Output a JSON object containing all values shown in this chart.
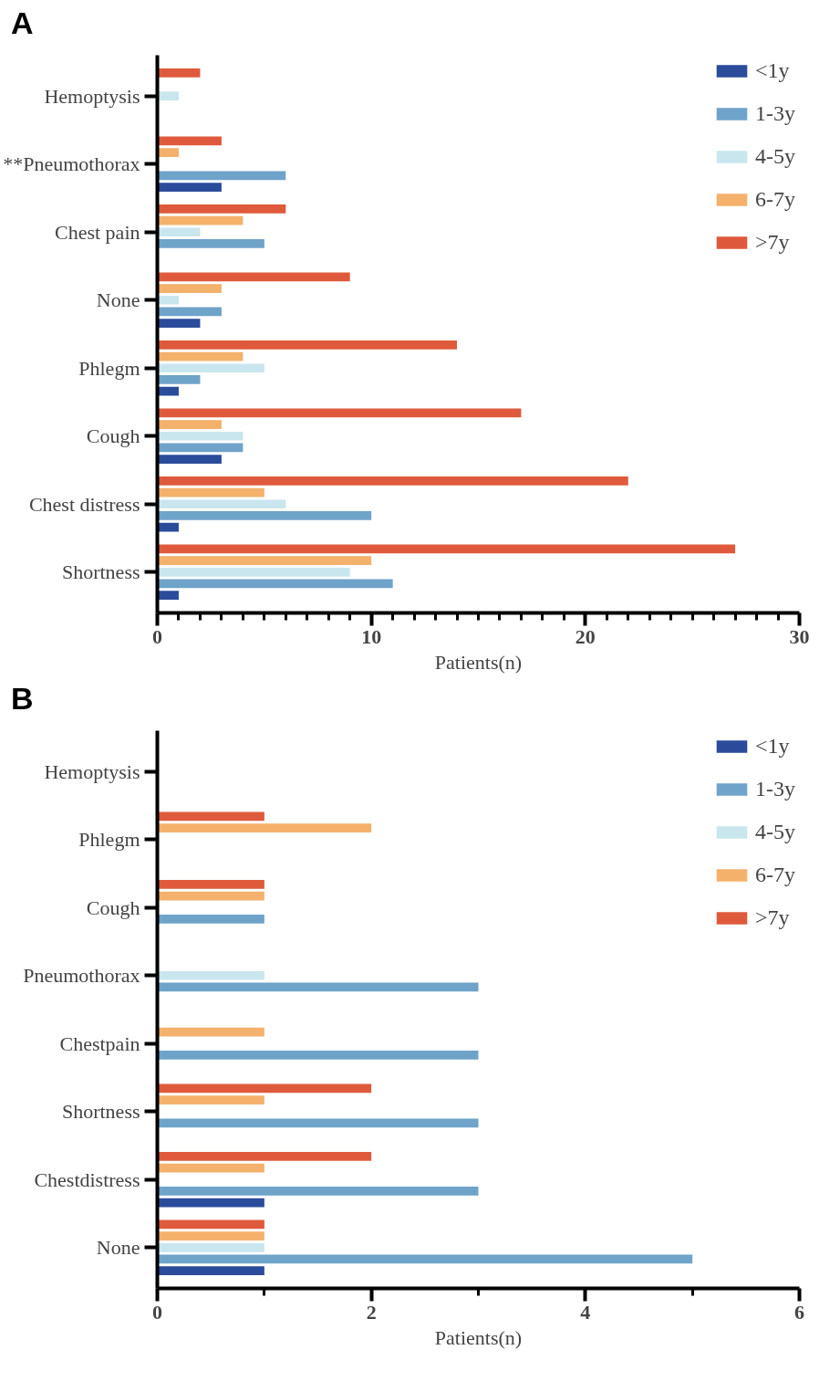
{
  "chart_data": [
    {
      "type": "bar",
      "orientation": "horizontal",
      "title": "A",
      "xlabel": "Patients(n)",
      "categories": [
        "Hemoptysis",
        "**Pneumothorax",
        "Chest pain",
        "None",
        "Phlegm",
        "Cough",
        "Chest distress",
        "Shortness"
      ],
      "series": [
        {
          "name": "<1y",
          "color": "#2b4b9b",
          "values": [
            0,
            3,
            0,
            2,
            1,
            3,
            1,
            1
          ]
        },
        {
          "name": "1-3y",
          "color": "#6fa3c9",
          "values": [
            0,
            6,
            5,
            3,
            2,
            4,
            10,
            11
          ]
        },
        {
          "name": "4-5y",
          "color": "#c9e6ef",
          "values": [
            1,
            0,
            2,
            1,
            5,
            4,
            6,
            9
          ]
        },
        {
          "name": "6-7y",
          "color": "#f4b16b",
          "values": [
            0,
            1,
            4,
            3,
            4,
            3,
            5,
            10
          ]
        },
        {
          "name": ">7y",
          "color": "#df5a3c",
          "values": [
            2,
            3,
            6,
            9,
            14,
            17,
            22,
            27
          ]
        }
      ],
      "xlim": [
        0,
        30
      ],
      "xticks": [
        0,
        {
          "value": 1,
          "label": null
        },
        {
          "value": 2,
          "label": null
        },
        {
          "value": 3,
          "label": null
        },
        {
          "value": 4,
          "label": null
        },
        {
          "value": 5,
          "label": null
        },
        {
          "value": 6,
          "label": null
        },
        {
          "value": 7,
          "label": null
        },
        {
          "value": 8,
          "label": null
        },
        {
          "value": 9,
          "label": null
        },
        10,
        {
          "value": 11,
          "label": null
        },
        {
          "value": 12,
          "label": null
        },
        {
          "value": 13,
          "label": null
        },
        {
          "value": 14,
          "label": null
        },
        {
          "value": 15,
          "label": null
        },
        {
          "value": 16,
          "label": null
        },
        {
          "value": 17,
          "label": null
        },
        {
          "value": 18,
          "label": null
        },
        {
          "value": 19,
          "label": null
        },
        20,
        {
          "value": 21,
          "label": null
        },
        {
          "value": 22,
          "label": null
        },
        {
          "value": 23,
          "label": null
        },
        {
          "value": 24,
          "label": null
        },
        {
          "value": 25,
          "label": null
        },
        {
          "value": 26,
          "label": null
        },
        {
          "value": 27,
          "label": null
        },
        {
          "value": 28,
          "label": null
        },
        {
          "value": 29,
          "label": null
        },
        30
      ],
      "grid": false,
      "legend": "top right"
    },
    {
      "type": "bar",
      "orientation": "horizontal",
      "title": "B",
      "xlabel": "Patients(n)",
      "categories": [
        "Hemoptysis",
        "Phlegm",
        "Cough",
        "Pneumothorax",
        "Chestpain",
        "Shortness",
        "Chestdistress",
        "None"
      ],
      "series": [
        {
          "name": "<1y",
          "color": "#2b4b9b",
          "values": [
            0,
            0,
            0,
            0,
            0,
            0,
            1,
            1
          ]
        },
        {
          "name": "1-3y",
          "color": "#6fa3c9",
          "values": [
            0,
            0,
            1,
            3,
            3,
            3,
            3,
            5
          ]
        },
        {
          "name": "4-5y",
          "color": "#c9e6ef",
          "values": [
            0,
            0,
            0,
            1,
            0,
            0,
            0,
            1
          ]
        },
        {
          "name": "6-7y",
          "color": "#f4b16b",
          "values": [
            0,
            2,
            1,
            0,
            1,
            1,
            1,
            1
          ]
        },
        {
          "name": ">7y",
          "color": "#df5a3c",
          "values": [
            0,
            1,
            1,
            0,
            0,
            2,
            2,
            1
          ]
        }
      ],
      "xlim": [
        0,
        6
      ],
      "xticks": [
        0,
        {
          "value": 1,
          "label": null
        },
        2,
        {
          "value": 3,
          "label": null
        },
        4,
        {
          "value": 5,
          "label": null
        },
        6
      ],
      "grid": false,
      "legend": "top right"
    }
  ]
}
